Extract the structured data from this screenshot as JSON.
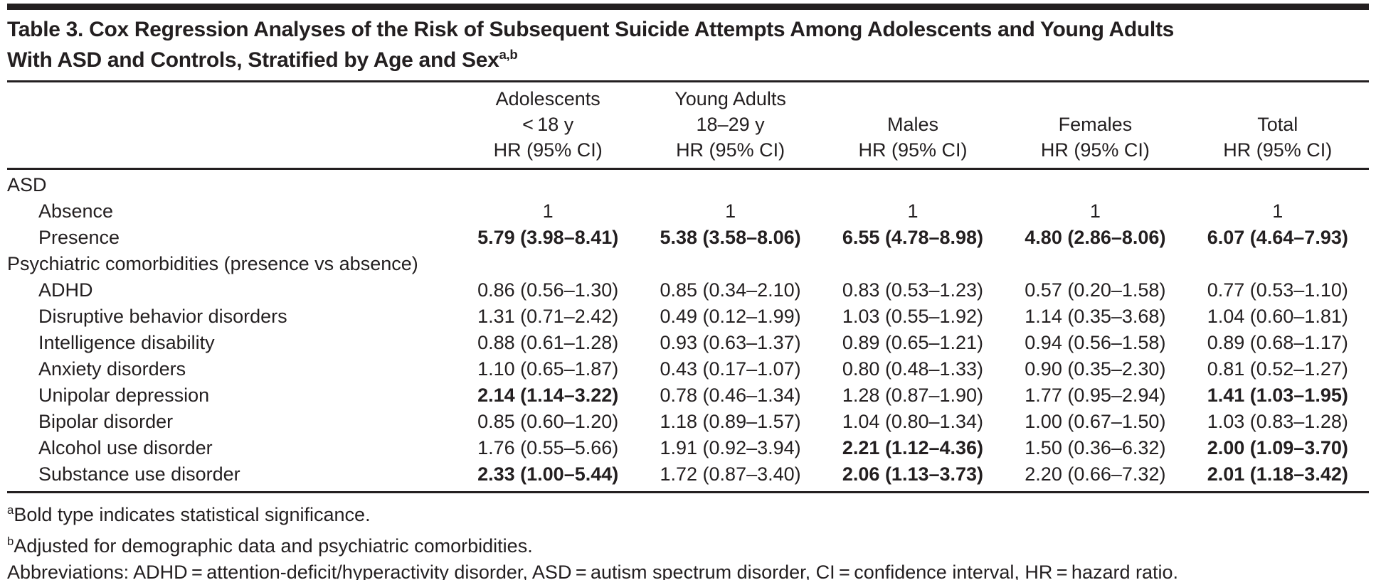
{
  "title": {
    "line1": "Table 3. Cox Regression Analyses of the Risk of Subsequent Suicide Attempts Among Adolescents and Young Adults",
    "line2": "With ASD and Controls, Stratified by Age and Sex",
    "sup": "a,b"
  },
  "header": {
    "columns": [
      {
        "line1": "Adolescents",
        "line2": "< 18 y",
        "line3": "HR (95% CI)"
      },
      {
        "line1": "Young Adults",
        "line2": "18–29 y",
        "line3": "HR (95% CI)"
      },
      {
        "line1": "",
        "line2": "Males",
        "line3": "HR (95% CI)"
      },
      {
        "line1": "",
        "line2": "Females",
        "line3": "HR (95% CI)"
      },
      {
        "line1": "",
        "line2": "Total",
        "line3": "HR (95% CI)"
      }
    ]
  },
  "rows": [
    {
      "label": "ASD",
      "section": true,
      "indent": false,
      "values": [
        {
          "text": "",
          "bold": false
        },
        {
          "text": "",
          "bold": false
        },
        {
          "text": "",
          "bold": false
        },
        {
          "text": "",
          "bold": false
        },
        {
          "text": "",
          "bold": false
        }
      ]
    },
    {
      "label": "Absence",
      "section": false,
      "indent": true,
      "values": [
        {
          "text": "1",
          "bold": false
        },
        {
          "text": "1",
          "bold": false
        },
        {
          "text": "1",
          "bold": false
        },
        {
          "text": "1",
          "bold": false
        },
        {
          "text": "1",
          "bold": false
        }
      ]
    },
    {
      "label": "Presence",
      "section": false,
      "indent": true,
      "values": [
        {
          "text": "5.79 (3.98–8.41)",
          "bold": true
        },
        {
          "text": "5.38 (3.58–8.06)",
          "bold": true
        },
        {
          "text": "6.55 (4.78–8.98)",
          "bold": true
        },
        {
          "text": "4.80 (2.86–8.06)",
          "bold": true
        },
        {
          "text": "6.07 (4.64–7.93)",
          "bold": true
        }
      ]
    },
    {
      "label": "Psychiatric comorbidities (presence vs absence)",
      "section": true,
      "indent": false,
      "values": [
        {
          "text": "",
          "bold": false
        },
        {
          "text": "",
          "bold": false
        },
        {
          "text": "",
          "bold": false
        },
        {
          "text": "",
          "bold": false
        },
        {
          "text": "",
          "bold": false
        }
      ]
    },
    {
      "label": "ADHD",
      "section": false,
      "indent": true,
      "values": [
        {
          "text": "0.86 (0.56–1.30)",
          "bold": false
        },
        {
          "text": "0.85 (0.34–2.10)",
          "bold": false
        },
        {
          "text": "0.83 (0.53–1.23)",
          "bold": false
        },
        {
          "text": "0.57 (0.20–1.58)",
          "bold": false
        },
        {
          "text": "0.77 (0.53–1.10)",
          "bold": false
        }
      ]
    },
    {
      "label": "Disruptive behavior disorders",
      "section": false,
      "indent": true,
      "values": [
        {
          "text": "1.31 (0.71–2.42)",
          "bold": false
        },
        {
          "text": "0.49 (0.12–1.99)",
          "bold": false
        },
        {
          "text": "1.03 (0.55–1.92)",
          "bold": false
        },
        {
          "text": "1.14 (0.35–3.68)",
          "bold": false
        },
        {
          "text": "1.04 (0.60–1.81)",
          "bold": false
        }
      ]
    },
    {
      "label": "Intelligence disability",
      "section": false,
      "indent": true,
      "values": [
        {
          "text": "0.88 (0.61–1.28)",
          "bold": false
        },
        {
          "text": "0.93 (0.63–1.37)",
          "bold": false
        },
        {
          "text": "0.89 (0.65–1.21)",
          "bold": false
        },
        {
          "text": "0.94 (0.56–1.58)",
          "bold": false
        },
        {
          "text": "0.89 (0.68–1.17)",
          "bold": false
        }
      ]
    },
    {
      "label": "Anxiety disorders",
      "section": false,
      "indent": true,
      "values": [
        {
          "text": "1.10 (0.65–1.87)",
          "bold": false
        },
        {
          "text": "0.43 (0.17–1.07)",
          "bold": false
        },
        {
          "text": "0.80 (0.48–1.33)",
          "bold": false
        },
        {
          "text": "0.90 (0.35–2.30)",
          "bold": false
        },
        {
          "text": "0.81 (0.52–1.27)",
          "bold": false
        }
      ]
    },
    {
      "label": "Unipolar depression",
      "section": false,
      "indent": true,
      "values": [
        {
          "text": "2.14 (1.14–3.22)",
          "bold": true
        },
        {
          "text": "0.78 (0.46–1.34)",
          "bold": false
        },
        {
          "text": "1.28 (0.87–1.90)",
          "bold": false
        },
        {
          "text": "1.77 (0.95–2.94)",
          "bold": false
        },
        {
          "text": "1.41 (1.03–1.95)",
          "bold": true
        }
      ]
    },
    {
      "label": "Bipolar disorder",
      "section": false,
      "indent": true,
      "values": [
        {
          "text": "0.85 (0.60–1.20)",
          "bold": false
        },
        {
          "text": "1.18 (0.89–1.57)",
          "bold": false
        },
        {
          "text": "1.04 (0.80–1.34)",
          "bold": false
        },
        {
          "text": "1.00 (0.67–1.50)",
          "bold": false
        },
        {
          "text": "1.03 (0.83–1.28)",
          "bold": false
        }
      ]
    },
    {
      "label": "Alcohol use disorder",
      "section": false,
      "indent": true,
      "values": [
        {
          "text": "1.76 (0.55–5.66)",
          "bold": false
        },
        {
          "text": "1.91 (0.92–3.94)",
          "bold": false
        },
        {
          "text": "2.21 (1.12–4.36)",
          "bold": true
        },
        {
          "text": "1.50 (0.36–6.32)",
          "bold": false
        },
        {
          "text": "2.00 (1.09–3.70)",
          "bold": true
        }
      ]
    },
    {
      "label": "Substance use disorder",
      "section": false,
      "indent": true,
      "values": [
        {
          "text": "2.33 (1.00–5.44)",
          "bold": true
        },
        {
          "text": "1.72 (0.87–3.40)",
          "bold": false
        },
        {
          "text": "2.06 (1.13–3.73)",
          "bold": true
        },
        {
          "text": "2.20 (0.66–7.32)",
          "bold": false
        },
        {
          "text": "2.01 (1.18–3.42)",
          "bold": true
        }
      ]
    }
  ],
  "footnotes": [
    {
      "name": "footnote-a",
      "sup": "a",
      "text": "Bold type indicates statistical significance."
    },
    {
      "name": "footnote-b",
      "sup": "b",
      "text": "Adjusted for demographic data and psychiatric comorbidities."
    },
    {
      "name": "footnote-abbreviations",
      "sup": "",
      "text": "Abbreviations: ADHD = attention-deficit/hyperactivity disorder, ASD = autism spectrum disorder, CI = confidence interval, HR = hazard ratio."
    }
  ],
  "colors": {
    "text": "#231f20",
    "rule": "#231f20",
    "background": "#ffffff"
  }
}
